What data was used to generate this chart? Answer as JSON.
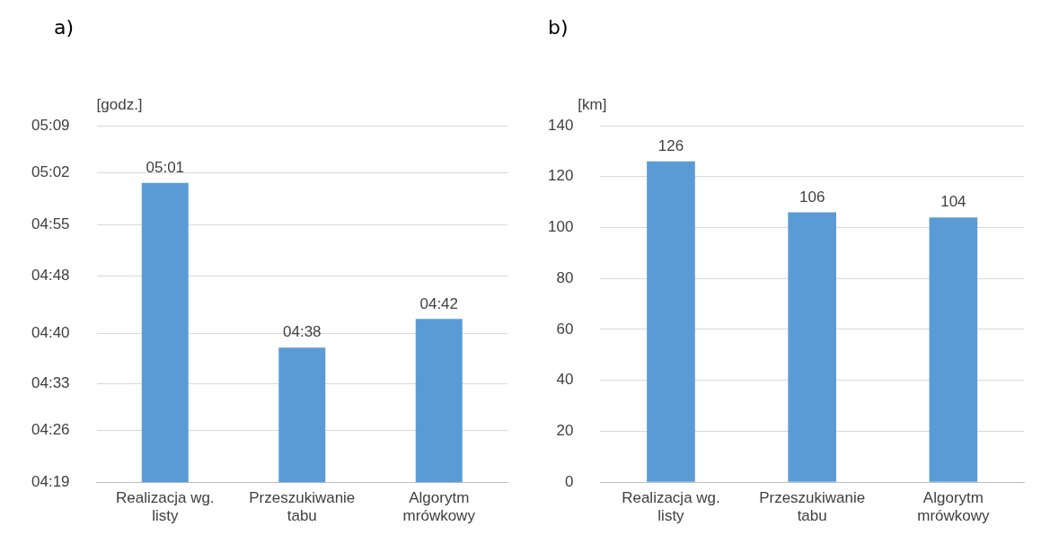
{
  "chart_data": [
    {
      "type": "bar",
      "title": "a)",
      "ylabel": "[godz.]",
      "categories": [
        "Realizacja wg. listy",
        "Przeszukiwanie tabu",
        "Algorytm mrówkowy"
      ],
      "values": [
        5.0167,
        4.6333,
        4.7
      ],
      "value_labels": [
        "05:01",
        "04:38",
        "04:42"
      ],
      "color": "#5b9bd5",
      "ylim": [
        4.32,
        5.15
      ],
      "yticks": [
        {
          "value": 4.32,
          "label": "04:19"
        },
        {
          "value": 4.44,
          "label": "04:26"
        },
        {
          "value": 4.55,
          "label": "04:33"
        },
        {
          "value": 4.6667,
          "label": "04:40"
        },
        {
          "value": 4.8,
          "label": "04:48"
        },
        {
          "value": 4.92,
          "label": "04:55"
        },
        {
          "value": 5.04,
          "label": "05:02"
        },
        {
          "value": 5.15,
          "label": "05:09"
        }
      ],
      "grid": "y"
    },
    {
      "type": "bar",
      "title": "b)",
      "ylabel": "[km]",
      "categories": [
        "Realizacja wg. listy",
        "Przeszukiwanie tabu",
        "Algorytm mrówkowy"
      ],
      "values": [
        126,
        106,
        104
      ],
      "data_labels": true,
      "color": "#5b9bd5",
      "ylim": [
        0,
        140
      ],
      "yticks": [
        0,
        20,
        40,
        60,
        80,
        100,
        120,
        140
      ],
      "grid": "y"
    }
  ]
}
